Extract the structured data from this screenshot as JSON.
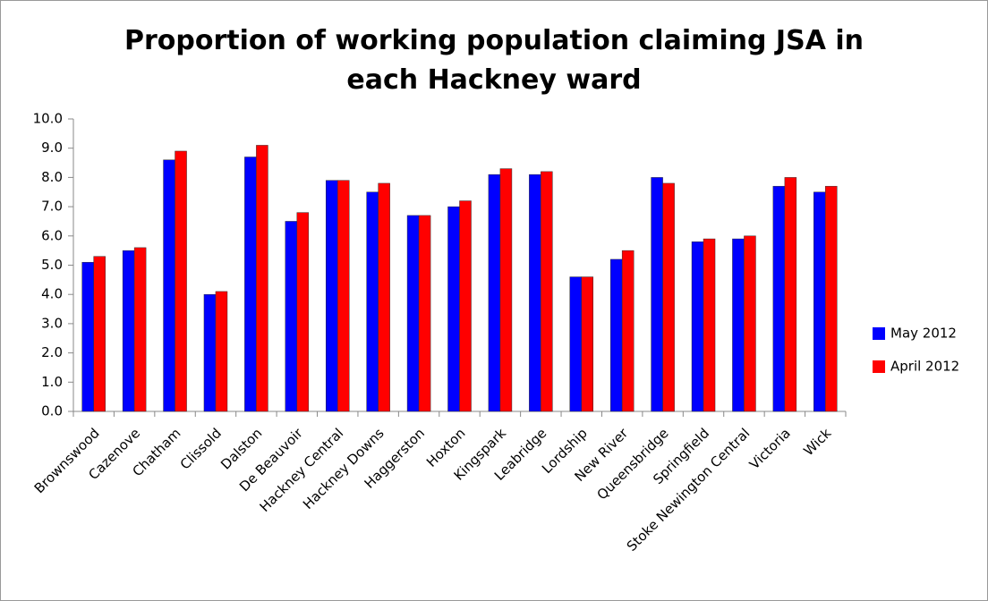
{
  "chart_data": {
    "type": "bar",
    "title": "Proportion of working population claiming JSA in each Hackney ward",
    "categories": [
      "Brownswood",
      "Cazenove",
      "Chatham",
      "Clissold",
      "Dalston",
      "De Beauvoir",
      "Hackney Central",
      "Hackney Downs",
      "Haggerston",
      "Hoxton",
      "Kingspark",
      "Leabridge",
      "Lordship",
      "New River",
      "Queensbridge",
      "Springfield",
      "Stoke Newington Central",
      "Victoria",
      "Wick"
    ],
    "series": [
      {
        "name": "May 2012",
        "color": "#0000ff",
        "values": [
          5.1,
          5.5,
          8.6,
          4.0,
          8.7,
          6.5,
          7.9,
          7.5,
          6.7,
          7.0,
          8.1,
          8.1,
          4.6,
          5.2,
          8.0,
          5.8,
          5.9,
          7.7,
          7.5
        ]
      },
      {
        "name": "April 2012",
        "color": "#ff0000",
        "values": [
          5.3,
          5.6,
          8.9,
          4.1,
          9.1,
          6.8,
          7.9,
          7.8,
          6.7,
          7.2,
          8.3,
          8.2,
          4.6,
          5.5,
          7.8,
          5.9,
          6.0,
          8.0,
          7.7
        ]
      }
    ],
    "ylim": [
      0,
      10
    ],
    "yticks": [
      {
        "value": 0,
        "label": "0.0"
      },
      {
        "value": 1,
        "label": "1.0"
      },
      {
        "value": 2,
        "label": "2.0"
      },
      {
        "value": 3,
        "label": "3.0"
      },
      {
        "value": 4,
        "label": "4.0"
      },
      {
        "value": 5,
        "label": "5.0"
      },
      {
        "value": 6,
        "label": "6.0"
      },
      {
        "value": 7,
        "label": "7.0"
      },
      {
        "value": 8,
        "label": "8.0"
      },
      {
        "value": 9,
        "label": "9.0"
      },
      {
        "value": 10,
        "label": "10.0"
      }
    ],
    "grid": false,
    "legend": "right"
  }
}
